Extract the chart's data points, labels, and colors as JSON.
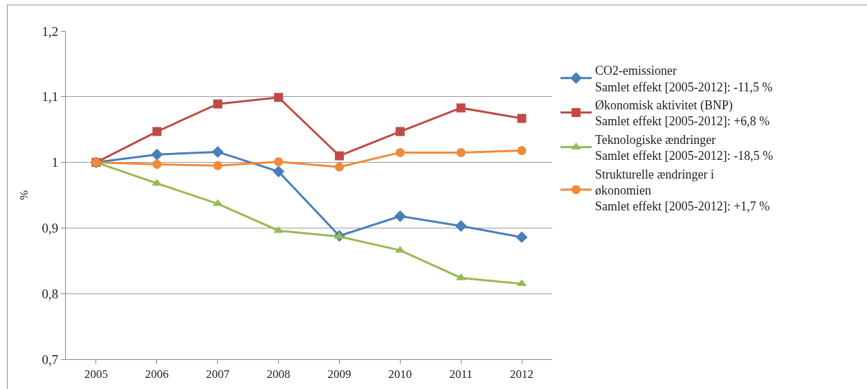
{
  "chart_data": {
    "type": "line",
    "ylabel": "%",
    "categories": [
      "2005",
      "2006",
      "2007",
      "2008",
      "2009",
      "2010",
      "2011",
      "2012"
    ],
    "series": [
      {
        "name": "CO2-emissioner\nSamlet effekt [2005-2012]: -11,5 %",
        "color": "#4a7ebb",
        "marker": "diamond",
        "values": [
          1.0,
          1.012,
          1.016,
          0.986,
          0.888,
          0.918,
          0.903,
          0.886
        ]
      },
      {
        "name": "Økonomisk aktivitet (BNP)\nSamlet effekt [2005-2012]: +6,8 %",
        "color": "#be4b48",
        "marker": "square",
        "values": [
          1.0,
          1.047,
          1.089,
          1.099,
          1.01,
          1.047,
          1.083,
          1.067
        ]
      },
      {
        "name": "Teknologiske ændringer\nSamlet effekt [2005-2012]: -18,5 %",
        "color": "#98b954",
        "marker": "triangle",
        "values": [
          1.0,
          0.968,
          0.937,
          0.896,
          0.887,
          0.866,
          0.824,
          0.815
        ]
      },
      {
        "name": "Strukturelle ændringer i\nøkonomien\nSamlet effekt [2005-2012]: +1,7 %",
        "color": "#f08a3a",
        "marker": "circle",
        "values": [
          1.0,
          0.997,
          0.995,
          1.001,
          0.993,
          1.015,
          1.015,
          1.018
        ]
      }
    ],
    "ylim": [
      0.7,
      1.2
    ],
    "yticks": [
      {
        "value": 0.7,
        "label": "0,7"
      },
      {
        "value": 0.8,
        "label": "0,8"
      },
      {
        "value": 0.9,
        "label": "0,9"
      },
      1,
      {
        "value": 1.1,
        "label": "1,1"
      },
      {
        "value": 1.2,
        "label": "1,2"
      }
    ],
    "grid": "y",
    "legend": "right",
    "line_style": "solid"
  }
}
